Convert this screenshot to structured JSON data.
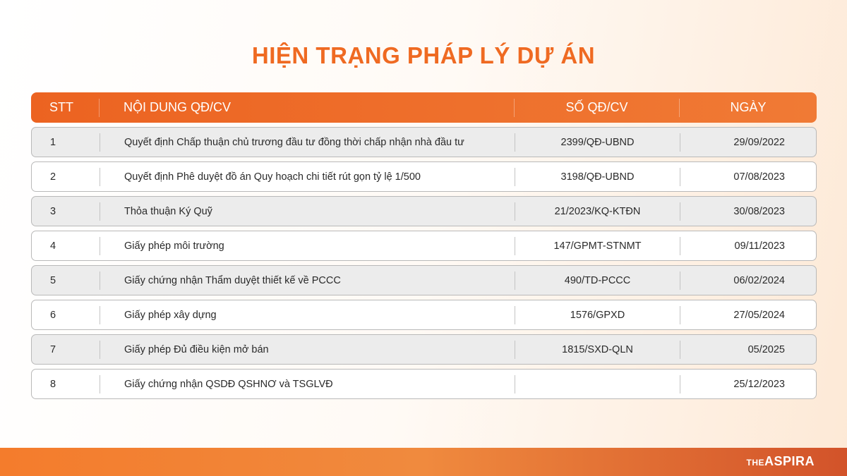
{
  "title": "HIỆN TRẠNG PHÁP LÝ DỰ ÁN",
  "headers": {
    "stt": "STT",
    "content": "NỘI DUNG QĐ/CV",
    "number": "SỐ QĐ/CV",
    "date": "NGÀY"
  },
  "rows": [
    {
      "stt": "1",
      "content": "Quyết định Chấp thuận chủ trương đầu tư đồng thời chấp nhận nhà đầu tư",
      "number": "2399/QĐ-UBND",
      "date": "29/09/2022"
    },
    {
      "stt": "2",
      "content": "Quyết định Phê duyệt đồ án Quy hoạch chi tiết rút gọn tỷ lệ 1/500",
      "number": "3198/QĐ-UBND",
      "date": "07/08/2023"
    },
    {
      "stt": "3",
      "content": "Thỏa thuận Ký Quỹ",
      "number": "21/2023/KQ-KTĐN",
      "date": "30/08/2023"
    },
    {
      "stt": "4",
      "content": "Giấy phép môi trường",
      "number": "147/GPMT-STNMT",
      "date": "09/11/2023"
    },
    {
      "stt": "5",
      "content": "Giấy chứng nhận Thẩm duyệt thiết kế về PCCC",
      "number": "490/TD-PCCC",
      "date": "06/02/2024"
    },
    {
      "stt": "6",
      "content": "Giấy phép xây dựng",
      "number": "1576/GPXD",
      "date": "27/05/2024"
    },
    {
      "stt": "7",
      "content": "Giấy phép Đủ điều kiện mở bán",
      "number": "1815/SXD-QLN",
      "date": "05/2025"
    },
    {
      "stt": "8",
      "content": "Giấy chứng nhận QSDĐ QSHNƠ và TSGLVĐ",
      "number": "",
      "date": "25/12/2023"
    }
  ],
  "logo": {
    "prefix": "THE",
    "name": "ASPIRA"
  },
  "colors": {
    "accent": "#ef6a22"
  }
}
